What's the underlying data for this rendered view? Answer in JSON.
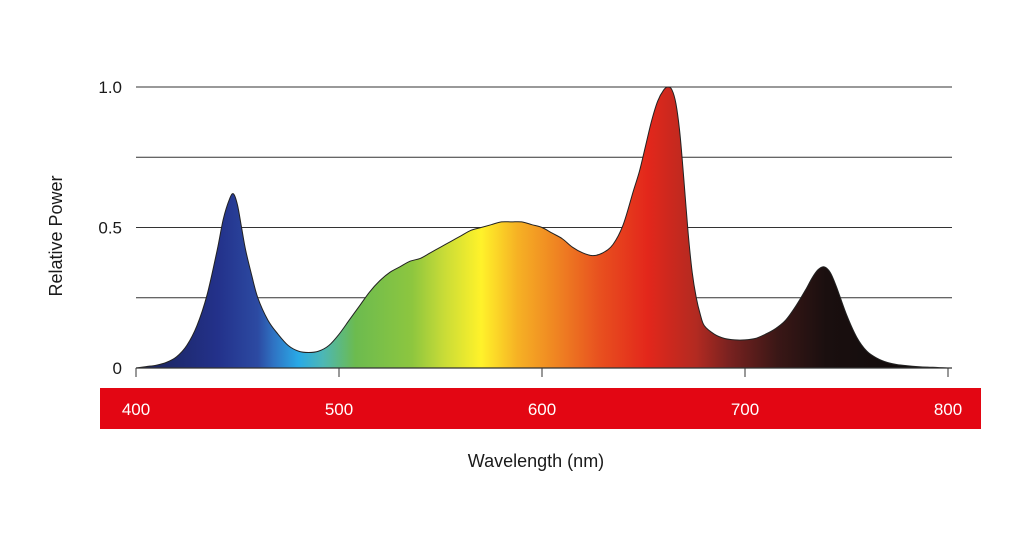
{
  "chart_data": {
    "type": "area",
    "xlabel": "Wavelength (nm)",
    "ylabel": "Relative Power",
    "xlim": [
      400,
      800
    ],
    "ylim": [
      0,
      1.0
    ],
    "x_ticks": [
      400,
      500,
      600,
      700,
      800
    ],
    "x_tick_labels": [
      "400",
      "500",
      "600",
      "700",
      "800"
    ],
    "y_ticks": [
      0,
      0.5,
      1.0
    ],
    "y_tick_labels": [
      "0",
      "0.5",
      "1.0"
    ],
    "gridlines_y": [
      0.25,
      0.5,
      0.75,
      1.0
    ],
    "grid": true,
    "fill": "visible-spectrum color gradient",
    "axis_band_color": "#e30613",
    "x": [
      400,
      405,
      410,
      415,
      420,
      425,
      430,
      435,
      440,
      443,
      446,
      448,
      450,
      452,
      454,
      457,
      460,
      465,
      470,
      475,
      480,
      485,
      490,
      495,
      500,
      505,
      510,
      515,
      520,
      525,
      530,
      535,
      540,
      545,
      550,
      555,
      560,
      565,
      570,
      575,
      580,
      585,
      590,
      595,
      600,
      605,
      610,
      615,
      620,
      625,
      630,
      635,
      640,
      645,
      648,
      651,
      654,
      657,
      660,
      662,
      664,
      666,
      668,
      670,
      672,
      674,
      676,
      678,
      680,
      685,
      690,
      695,
      700,
      705,
      710,
      715,
      720,
      725,
      730,
      733,
      736,
      739,
      742,
      745,
      750,
      755,
      760,
      765,
      770,
      775,
      780,
      785,
      790,
      795,
      800
    ],
    "values": [
      0.0,
      0.005,
      0.01,
      0.02,
      0.04,
      0.08,
      0.15,
      0.26,
      0.42,
      0.53,
      0.6,
      0.62,
      0.58,
      0.5,
      0.42,
      0.33,
      0.25,
      0.17,
      0.12,
      0.08,
      0.06,
      0.055,
      0.06,
      0.08,
      0.12,
      0.17,
      0.22,
      0.27,
      0.31,
      0.34,
      0.36,
      0.38,
      0.39,
      0.41,
      0.43,
      0.45,
      0.47,
      0.49,
      0.5,
      0.51,
      0.52,
      0.52,
      0.52,
      0.51,
      0.5,
      0.48,
      0.46,
      0.43,
      0.41,
      0.4,
      0.41,
      0.44,
      0.51,
      0.63,
      0.7,
      0.79,
      0.88,
      0.95,
      0.99,
      1.0,
      0.99,
      0.94,
      0.83,
      0.66,
      0.48,
      0.34,
      0.25,
      0.19,
      0.15,
      0.12,
      0.105,
      0.1,
      0.1,
      0.105,
      0.12,
      0.14,
      0.17,
      0.22,
      0.28,
      0.32,
      0.35,
      0.36,
      0.34,
      0.29,
      0.19,
      0.11,
      0.06,
      0.035,
      0.02,
      0.012,
      0.008,
      0.005,
      0.003,
      0.002,
      0.0
    ]
  }
}
